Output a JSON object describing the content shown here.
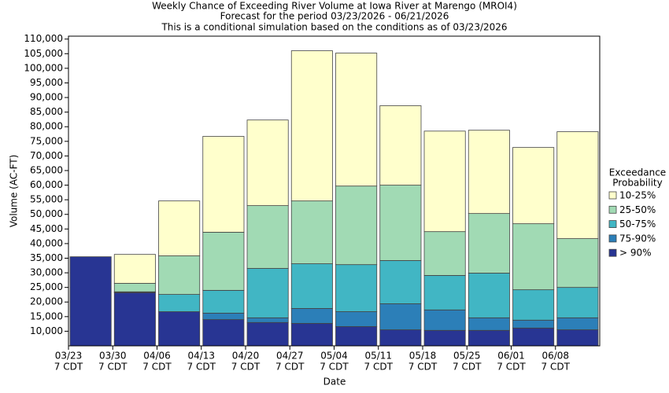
{
  "chart_data": {
    "type": "stacked_bar",
    "title": "Weekly Chance of Exceeding River Volume at Iowa River at Marengo (MROI4)",
    "subtitle": [
      "Forecast for the period 03/23/2026 - 06/21/2026",
      "This is a conditional simulation based on the conditions as of 03/23/2026"
    ],
    "x_label": "Date",
    "y_label": "Volume (AC-FT)",
    "legend_title": [
      "Exceedance",
      "Probability"
    ],
    "legend_position": "right",
    "categories": [
      [
        "03/23",
        "7 CDT"
      ],
      [
        "03/30",
        "7 CDT"
      ],
      [
        "04/06",
        "7 CDT"
      ],
      [
        "04/13",
        "7 CDT"
      ],
      [
        "04/20",
        "7 CDT"
      ],
      [
        "04/27",
        "7 CDT"
      ],
      [
        "05/04",
        "7 CDT"
      ],
      [
        "05/11",
        "7 CDT"
      ],
      [
        "05/18",
        "7 CDT"
      ],
      [
        "05/25",
        "7 CDT"
      ],
      [
        "06/01",
        "7 CDT"
      ],
      [
        "06/08",
        "7 CDT"
      ]
    ],
    "series": [
      {
        "name": "> 90%",
        "color": "#283593",
        "values": [
          35500,
          23200,
          16700,
          14000,
          13000,
          12700,
          11600,
          10500,
          10300,
          10300,
          11100,
          10500
        ]
      },
      {
        "name": "75-90%",
        "color": "#2c7fb8",
        "values": [
          0,
          100,
          0,
          2200,
          1600,
          5100,
          5100,
          8900,
          7000,
          4300,
          2700,
          4100
        ]
      },
      {
        "name": "50-75%",
        "color": "#41b6c4",
        "values": [
          0,
          200,
          5900,
          7800,
          16900,
          15300,
          16100,
          14800,
          11800,
          15300,
          10400,
          10400
        ]
      },
      {
        "name": "25-50%",
        "color": "#a1dab4",
        "values": [
          0,
          2900,
          13200,
          19900,
          21500,
          21500,
          26900,
          25800,
          15000,
          20400,
          22600,
          16700
        ]
      },
      {
        "name": "10-25%",
        "color": "#ffffcc",
        "values": [
          0,
          9900,
          18800,
          32800,
          29300,
          51400,
          45500,
          27200,
          34400,
          28500,
          26100,
          36600
        ]
      }
    ],
    "ylim": [
      5000,
      111000
    ],
    "yticks": [
      {
        "value": 10000,
        "label": "10,000"
      },
      {
        "value": 15000,
        "label": "15,000"
      },
      {
        "value": 20000,
        "label": "20,000"
      },
      {
        "value": 25000,
        "label": "25,000"
      },
      {
        "value": 30000,
        "label": "30,000"
      },
      {
        "value": 35000,
        "label": "35,000"
      },
      {
        "value": 40000,
        "label": "40,000"
      },
      {
        "value": 45000,
        "label": "45,000"
      },
      {
        "value": 50000,
        "label": "50,000"
      },
      {
        "value": 55000,
        "label": "55,000"
      },
      {
        "value": 60000,
        "label": "60,000"
      },
      {
        "value": 65000,
        "label": "65,000"
      },
      {
        "value": 70000,
        "label": "70,000"
      },
      {
        "value": 75000,
        "label": "75,000"
      },
      {
        "value": 80000,
        "label": "80,000"
      },
      {
        "value": 85000,
        "label": "85,000"
      },
      {
        "value": 90000,
        "label": "90,000"
      },
      {
        "value": 95000,
        "label": "95,000"
      },
      {
        "value": 100000,
        "label": "100,000"
      },
      {
        "value": 105000,
        "label": "105,000"
      },
      {
        "value": 110000,
        "label": "110,000"
      }
    ]
  }
}
